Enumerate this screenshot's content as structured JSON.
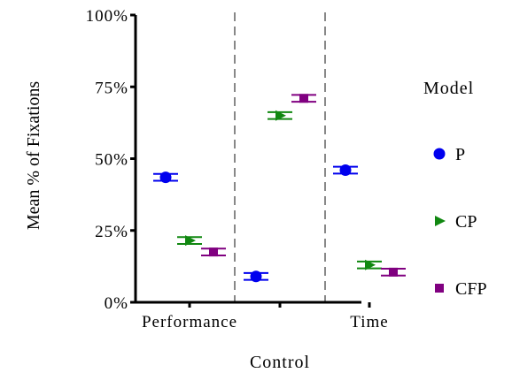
{
  "chart_data": {
    "type": "scatter",
    "xlabel": "Control",
    "ylabel": "Mean % of Fixations",
    "categories": [
      "Performance",
      "",
      "Time"
    ],
    "ylim": [
      0,
      100
    ],
    "yticks": [
      "0%",
      "25%",
      "50%",
      "75%",
      "100%"
    ],
    "legend": {
      "title": "Model",
      "placement": "right"
    },
    "series": [
      {
        "name": "P",
        "color": "#0000ee",
        "marker": "circle",
        "values": [
          43.5,
          9,
          46
        ]
      },
      {
        "name": "CP",
        "color": "#118811",
        "marker": "triangle",
        "values": [
          21.5,
          65,
          13
        ]
      },
      {
        "name": "CFP",
        "color": "#800080",
        "marker": "square",
        "values": [
          17.5,
          71,
          10.5
        ]
      }
    ],
    "error_halfwidth": 1.2,
    "dashed_separators": true,
    "grid": false
  }
}
